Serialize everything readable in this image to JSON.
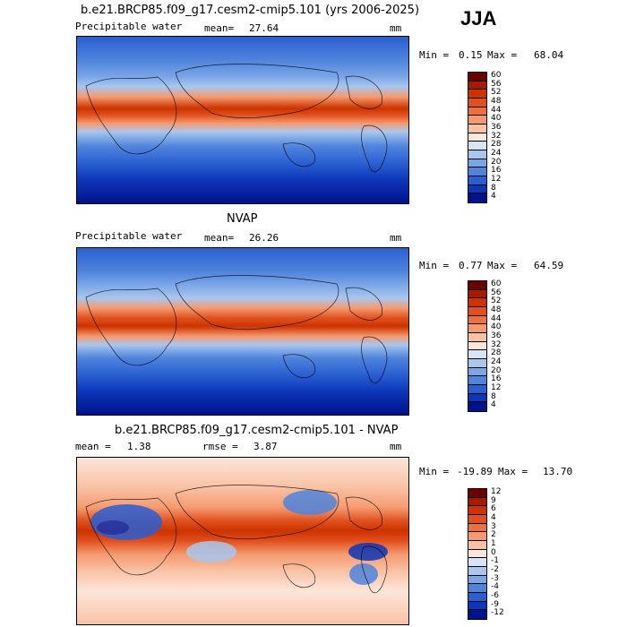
{
  "season": "JJA",
  "panels": [
    {
      "title": "b.e21.BRCP85.f09_g17.cesm2-cmip5.101 (yrs 2006-2025)",
      "left_label": "Precipitable water",
      "stat_label": "mean=",
      "stat_value": "27.64",
      "units": "mm",
      "min_label": "Min =",
      "min_value": "0.15",
      "max_label": "Max =",
      "max_value": "68.04",
      "colorbar_labels": [
        "60",
        "56",
        "52",
        "48",
        "44",
        "40",
        "36",
        "32",
        "28",
        "24",
        "20",
        "16",
        "12",
        "8",
        "4"
      ]
    },
    {
      "title": "NVAP",
      "left_label": "Precipitable water",
      "stat_label": "mean=",
      "stat_value": "26.26",
      "units": "mm",
      "min_label": "Min =",
      "min_value": "0.77",
      "max_label": "Max =",
      "max_value": "64.59",
      "colorbar_labels": [
        "60",
        "56",
        "52",
        "48",
        "44",
        "40",
        "36",
        "32",
        "28",
        "24",
        "20",
        "16",
        "12",
        "8",
        "4"
      ]
    },
    {
      "title": "b.e21.BRCP85.f09_g17.cesm2-cmip5.101 - NVAP",
      "mean_label": "mean =",
      "mean_value": "1.38",
      "rmse_label": "rmse =",
      "rmse_value": "3.87",
      "units": "mm",
      "min_label": "Min =",
      "min_value": "-19.89",
      "max_label": "Max =",
      "max_value": "13.70",
      "colorbar_labels": [
        "12",
        "9",
        "6",
        "4",
        "3",
        "2",
        "1",
        "0",
        "-1",
        "-2",
        "-3",
        "-4",
        "-6",
        "-9",
        "-12"
      ]
    }
  ],
  "colors": {
    "pw_scale": [
      "#6a0000",
      "#a51a00",
      "#cc3300",
      "#e0501e",
      "#ee7040",
      "#f59a70",
      "#f8c2a4",
      "#fde6da",
      "#d6e4f6",
      "#a9c6ee",
      "#7aa6e6",
      "#4f84dc",
      "#2a5fd2",
      "#0d36b8",
      "#00128c"
    ],
    "diff_scale": [
      "#6a0000",
      "#a51a00",
      "#cc3300",
      "#e0501e",
      "#ee7040",
      "#f59a70",
      "#f8c2a4",
      "#fde6da",
      "#d6e4f6",
      "#a9c6ee",
      "#7aa6e6",
      "#4f84dc",
      "#2a5fd2",
      "#0d36b8",
      "#00128c"
    ]
  }
}
